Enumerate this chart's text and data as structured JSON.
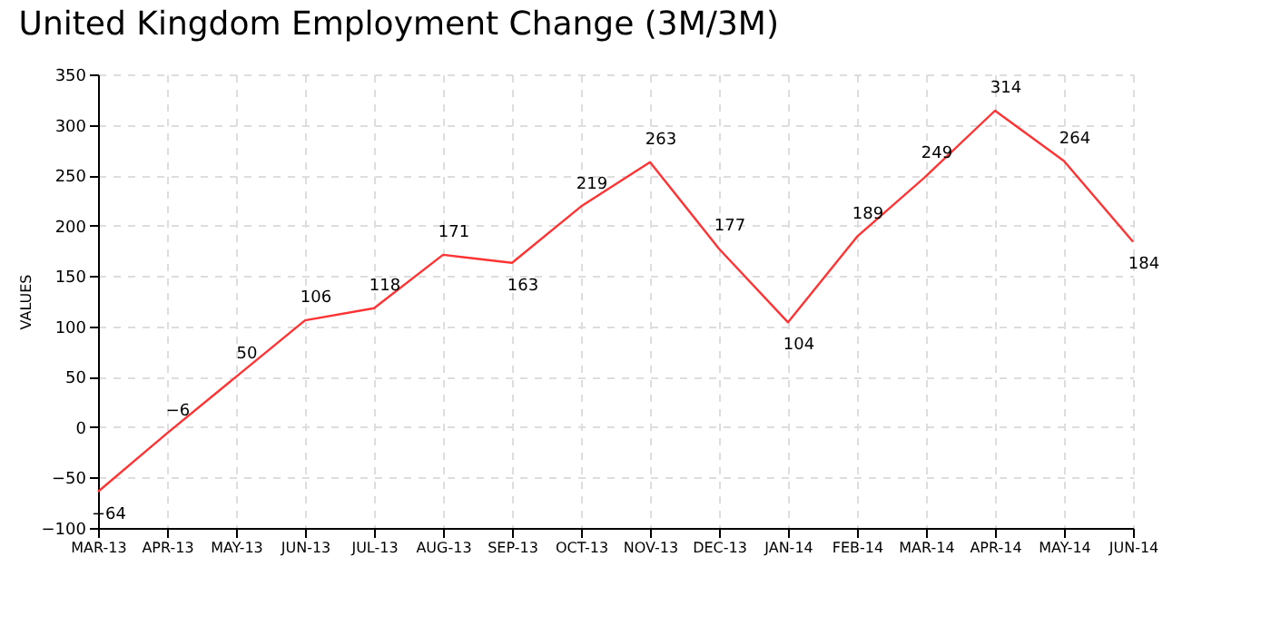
{
  "chart_data": {
    "type": "line",
    "title": "United Kingdom Employment Change (3M/3M)",
    "ylabel": "VALUES",
    "categories": [
      "MAR-13",
      "APR-13",
      "MAY-13",
      "JUN-13",
      "JUL-13",
      "AUG-13",
      "SEP-13",
      "OCT-13",
      "NOV-13",
      "DEC-13",
      "JAN-14",
      "FEB-14",
      "MAR-14",
      "APR-14",
      "MAY-14",
      "JUN-14"
    ],
    "series": [
      {
        "color": "#ff3333",
        "values": [
          -64,
          -6,
          50,
          106,
          118,
          171,
          163,
          219,
          263,
          177,
          104,
          189,
          249,
          314,
          264,
          184
        ]
      }
    ],
    "ylim": [
      -100,
      350
    ],
    "yticks": [
      -100,
      -50,
      0,
      50,
      100,
      150,
      200,
      250,
      300,
      350
    ],
    "grid": true,
    "data_labels": true,
    "marker": "none",
    "line_style": "solid"
  }
}
